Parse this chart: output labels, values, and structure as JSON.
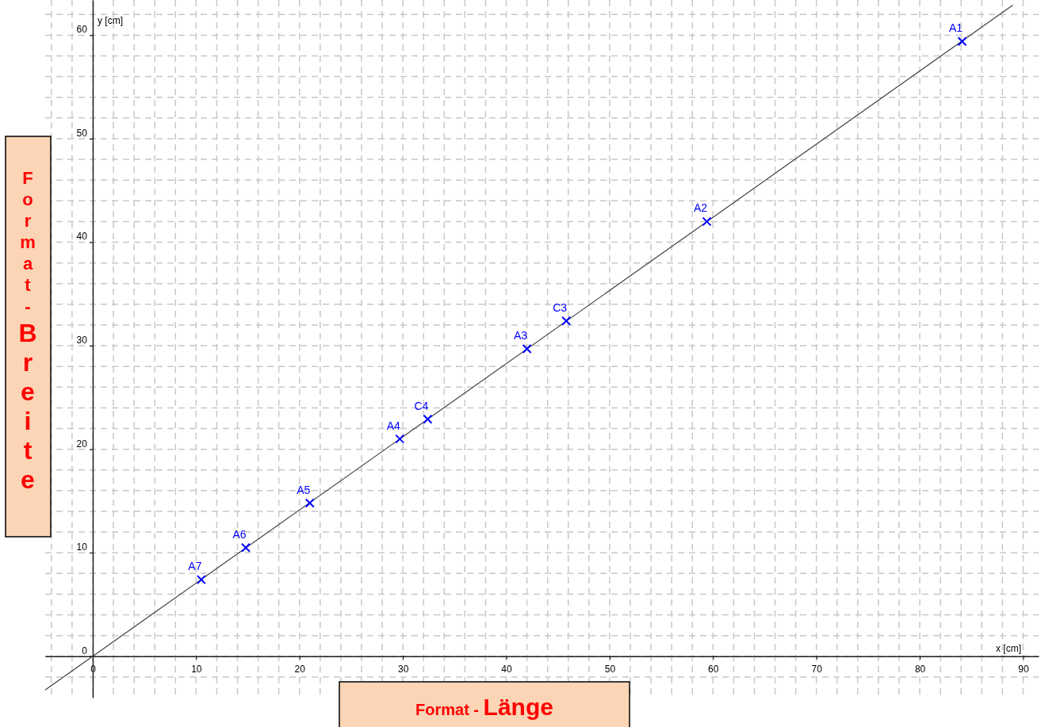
{
  "chart_data": {
    "type": "scatter",
    "xlabel": "x [cm]",
    "ylabel": "y [cm]",
    "xlim": [
      -4.6,
      91.5
    ],
    "ylim": [
      -4,
      63.4
    ],
    "xticks": [
      {
        "value": -4,
        "label": null
      },
      {
        "value": -2,
        "label": null
      },
      0,
      {
        "value": 2,
        "label": null
      },
      {
        "value": 4,
        "label": null
      },
      {
        "value": 6,
        "label": null
      },
      {
        "value": 8,
        "label": null
      },
      10,
      {
        "value": 12,
        "label": null
      },
      {
        "value": 14,
        "label": null
      },
      {
        "value": 16,
        "label": null
      },
      {
        "value": 18,
        "label": null
      },
      20,
      {
        "value": 22,
        "label": null
      },
      {
        "value": 24,
        "label": null
      },
      {
        "value": 26,
        "label": null
      },
      {
        "value": 28,
        "label": null
      },
      30,
      {
        "value": 32,
        "label": null
      },
      {
        "value": 34,
        "label": null
      },
      {
        "value": 36,
        "label": null
      },
      {
        "value": 38,
        "label": null
      },
      40,
      {
        "value": 42,
        "label": null
      },
      {
        "value": 44,
        "label": null
      },
      {
        "value": 46,
        "label": null
      },
      {
        "value": 48,
        "label": null
      },
      50,
      {
        "value": 52,
        "label": null
      },
      {
        "value": 54,
        "label": null
      },
      {
        "value": 56,
        "label": null
      },
      {
        "value": 58,
        "label": null
      },
      60,
      {
        "value": 62,
        "label": null
      },
      {
        "value": 64,
        "label": null
      },
      {
        "value": 66,
        "label": null
      },
      {
        "value": 68,
        "label": null
      },
      70,
      {
        "value": 72,
        "label": null
      },
      {
        "value": 74,
        "label": null
      },
      {
        "value": 76,
        "label": null
      },
      {
        "value": 78,
        "label": null
      },
      80,
      {
        "value": 82,
        "label": null
      },
      {
        "value": 84,
        "label": null
      },
      {
        "value": 86,
        "label": null
      },
      {
        "value": 88,
        "label": null
      },
      90
    ],
    "yticks": [
      {
        "value": -2,
        "label": null
      },
      0,
      {
        "value": 2,
        "label": null
      },
      {
        "value": 4,
        "label": null
      },
      {
        "value": 6,
        "label": null
      },
      {
        "value": 8,
        "label": null
      },
      10,
      {
        "value": 12,
        "label": null
      },
      {
        "value": 14,
        "label": null
      },
      {
        "value": 16,
        "label": null
      },
      {
        "value": 18,
        "label": null
      },
      20,
      {
        "value": 22,
        "label": null
      },
      {
        "value": 24,
        "label": null
      },
      {
        "value": 26,
        "label": null
      },
      {
        "value": 28,
        "label": null
      },
      30,
      {
        "value": 32,
        "label": null
      },
      {
        "value": 34,
        "label": null
      },
      {
        "value": 36,
        "label": null
      },
      {
        "value": 38,
        "label": null
      },
      40,
      {
        "value": 42,
        "label": null
      },
      {
        "value": 44,
        "label": null
      },
      {
        "value": 46,
        "label": null
      },
      {
        "value": 48,
        "label": null
      },
      50,
      {
        "value": 52,
        "label": null
      },
      {
        "value": 54,
        "label": null
      },
      {
        "value": 56,
        "label": null
      },
      {
        "value": 58,
        "label": null
      },
      60,
      {
        "value": 62,
        "label": null
      }
    ],
    "grid": true,
    "series": [
      {
        "type": "line",
        "color": "#404040",
        "x": [
          -4.6,
          89
        ],
        "values": [
          -3.25,
          62.9
        ],
        "line_style": "solid"
      },
      {
        "color": "#0000ff",
        "marker": "cross",
        "x": [
          84.1,
          59.4,
          42,
          29.7,
          21,
          14.8,
          10.5
        ],
        "values": [
          59.4,
          42,
          29.7,
          21,
          14.8,
          10.5,
          7.4
        ]
      },
      {
        "color": "#0000ff",
        "marker": "cross",
        "x": [
          45.8,
          32.4
        ],
        "values": [
          32.4,
          22.9
        ]
      }
    ],
    "annotations": [
      "Format - Länge",
      "Format-Breite",
      {
        "text": "A1",
        "x": 84.1,
        "y": 59.4
      },
      {
        "text": "A2",
        "x": 59.4,
        "y": 42
      },
      {
        "text": "A3",
        "x": 42,
        "y": 29.7
      },
      {
        "text": "A4",
        "x": 29.7,
        "y": 21
      },
      {
        "text": "A5",
        "x": 21,
        "y": 14.8
      },
      {
        "text": "A6",
        "x": 14.8,
        "y": 10.5
      },
      {
        "text": "A7",
        "x": 10.5,
        "y": 7.4
      },
      {
        "text": "C3",
        "x": 45.8,
        "y": 32.4
      },
      {
        "text": "C4",
        "x": 32.4,
        "y": 22.9
      }
    ]
  }
}
